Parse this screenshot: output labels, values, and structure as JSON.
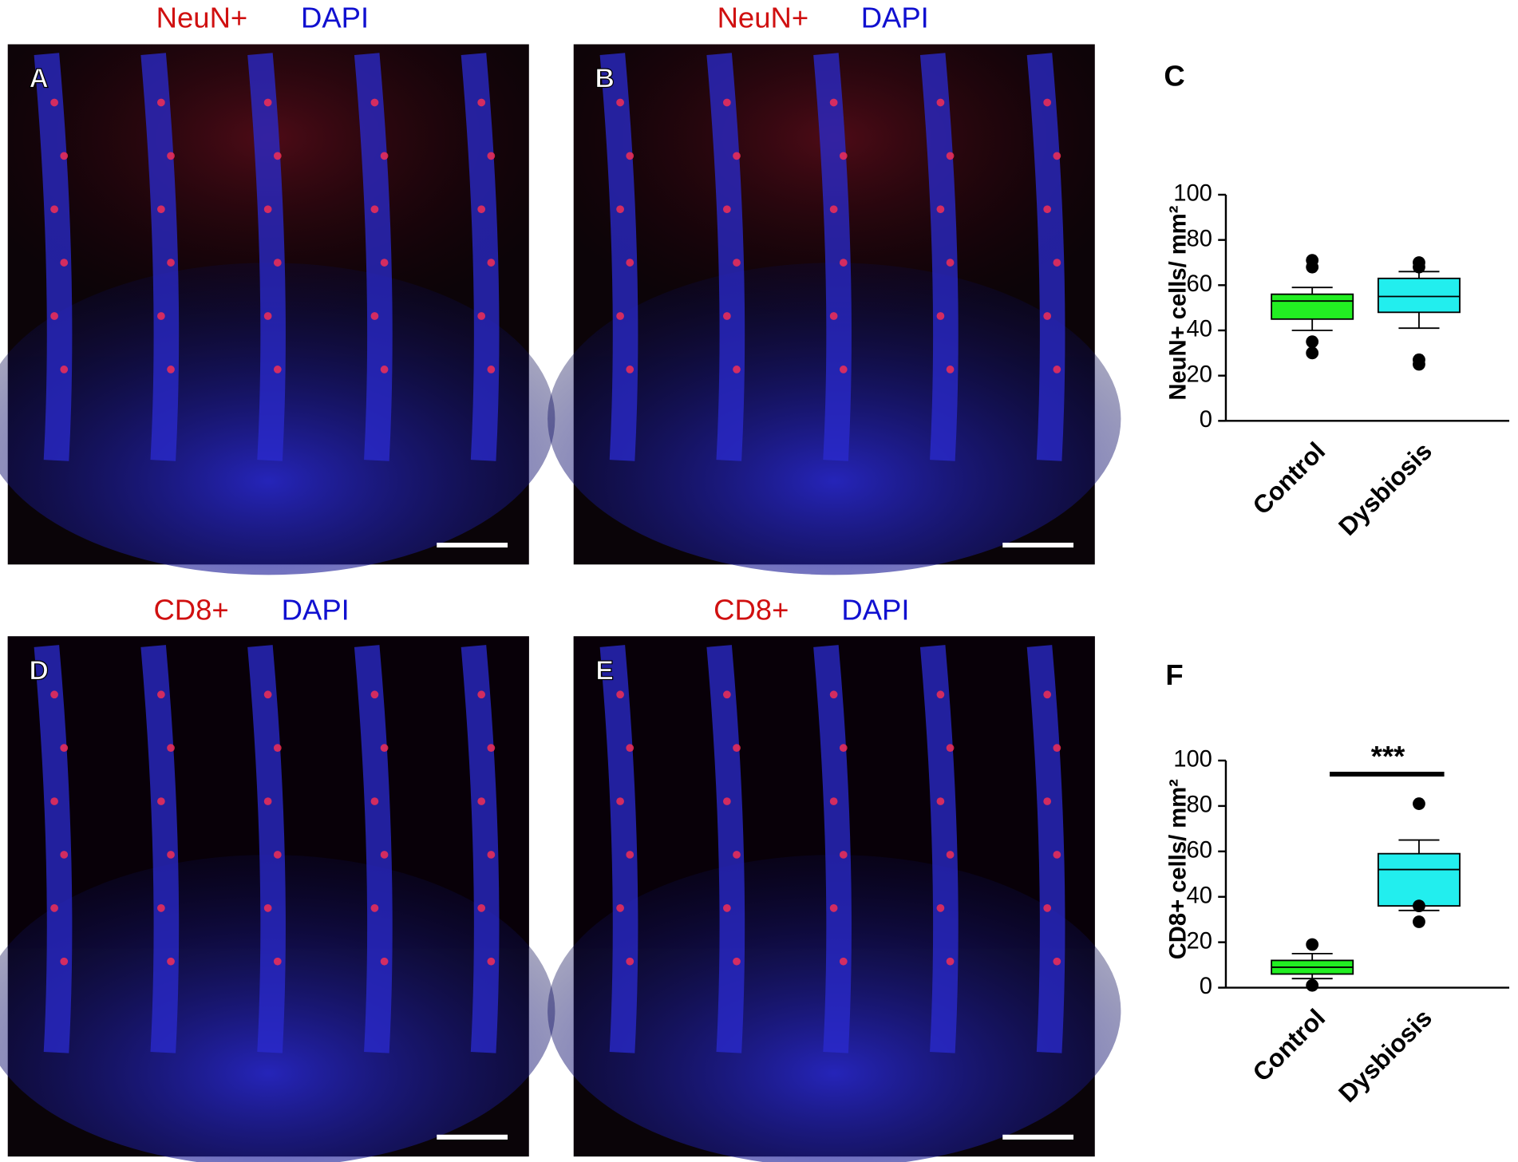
{
  "panels": [
    {
      "letter": "A",
      "marker": "NeuN+",
      "stain": "DAPI"
    },
    {
      "letter": "B",
      "marker": "NeuN+",
      "stain": "DAPI"
    },
    {
      "letter": "D",
      "marker": "CD8+",
      "stain": "DAPI"
    },
    {
      "letter": "E",
      "marker": "CD8+",
      "stain": "DAPI"
    }
  ],
  "chart_data": [
    {
      "type": "box",
      "panel_label": "C",
      "ylabel": "NeuN+ cells/ mm²",
      "categories": [
        "Control",
        "Dysbiosis"
      ],
      "boxes": [
        {
          "color": "#22ee22",
          "whisker_low": 40,
          "q1": 45,
          "median": 53,
          "q3": 56,
          "whisker_high": 59,
          "outliers": [
            71,
            68,
            35,
            30
          ]
        },
        {
          "color": "#22eeee",
          "whisker_low": 41,
          "q1": 48,
          "median": 55,
          "q3": 63,
          "whisker_high": 66,
          "outliers": [
            70,
            68,
            27,
            25
          ]
        }
      ],
      "ylim": [
        0,
        100
      ],
      "yticks": [
        0,
        20,
        40,
        60,
        80,
        100
      ]
    },
    {
      "type": "box",
      "panel_label": "F",
      "ylabel": "CD8+ cells/ mm²",
      "categories": [
        "Control",
        "Dysbiosis"
      ],
      "boxes": [
        {
          "color": "#22ee22",
          "whisker_low": 4,
          "q1": 6,
          "median": 9,
          "q3": 12,
          "whisker_high": 15,
          "outliers": [
            19,
            1
          ]
        },
        {
          "color": "#22eeee",
          "whisker_low": 34,
          "q1": 36,
          "median": 52,
          "q3": 59,
          "whisker_high": 65,
          "outliers": [
            81,
            36,
            29
          ]
        }
      ],
      "ylim": [
        0,
        100
      ],
      "yticks": [
        0,
        20,
        40,
        60,
        80,
        100
      ],
      "annotation": "***"
    }
  ]
}
